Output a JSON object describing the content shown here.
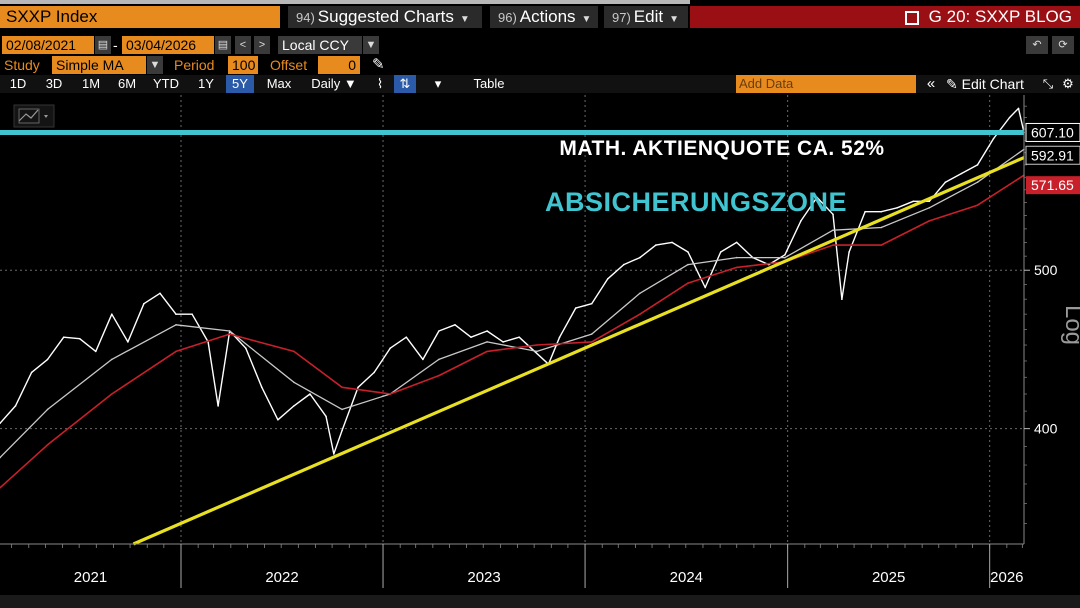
{
  "header": {
    "ticker": "SXXP Index",
    "menu": [
      {
        "num": "94)",
        "label": "Suggested Charts"
      },
      {
        "num": "96)",
        "label": "Actions"
      },
      {
        "num": "97)",
        "label": "Edit"
      }
    ],
    "blog_title": "G 20: SXXP BLOG"
  },
  "toolbar": {
    "start_date": "02/08/2021",
    "end_date": "03/04/2026",
    "currency": "Local CCY",
    "study_label": "Study",
    "study_value": "Simple MA",
    "period_label": "Period",
    "period_value": "100",
    "offset_label": "Offset",
    "offset_value": "0"
  },
  "periods": [
    "1D",
    "3D",
    "1M",
    "6M",
    "YTD",
    "1Y",
    "5Y",
    "Max"
  ],
  "selected_period": "5Y",
  "frequency": "Daily",
  "table_label": "Table",
  "add_data_placeholder": "Add Data",
  "edit_chart_label": "Edit Chart",
  "colors": {
    "price": "#ffffff",
    "ma_short": "#c8c8c8",
    "ma_long": "#c8202a",
    "trendline": "#e8e020",
    "level_line": "#3fc4d0",
    "annotation_text": "#3fc4d0"
  },
  "chart_data": {
    "type": "line",
    "xlabel": "",
    "ylabel": "",
    "y_scale": "log",
    "y_scale_label": "Log",
    "ylim": [
      340,
      640
    ],
    "x_range": [
      "2021-02-08",
      "2026-03-04"
    ],
    "x_tick_labels": [
      "2021",
      "2022",
      "2023",
      "2024",
      "2025",
      "2026"
    ],
    "y_ticks": [
      400,
      500
    ],
    "grid": true,
    "annotations": [
      {
        "text": "MATH. AKTIENQUOTE CA. 52%",
        "color": "#ffffff"
      },
      {
        "text": "ABSICHERUNGSZONE",
        "color": "#3fc4d0"
      }
    ],
    "last_values": [
      {
        "label": "607.10",
        "color": "#ffffff"
      },
      {
        "label": "592.91",
        "color": "#c8c8c8"
      },
      {
        "label": "571.65",
        "color": "#c8202a"
      }
    ],
    "hlines": [
      {
        "y": 607.1,
        "color": "#3fc4d0"
      }
    ],
    "trendline": {
      "color": "#e8e020",
      "points": [
        {
          "date": "2021-10-07",
          "value": 340
        },
        {
          "date": "2026-03-04",
          "value": 586
        }
      ]
    },
    "series": [
      {
        "role": "price",
        "color": "#ffffff",
        "points": [
          {
            "date": "2021-02-08",
            "value": 403
          },
          {
            "date": "2021-03-08",
            "value": 413
          },
          {
            "date": "2021-04-06",
            "value": 433
          },
          {
            "date": "2021-05-05",
            "value": 441
          },
          {
            "date": "2021-06-03",
            "value": 455
          },
          {
            "date": "2021-07-02",
            "value": 454
          },
          {
            "date": "2021-07-31",
            "value": 446
          },
          {
            "date": "2021-08-29",
            "value": 470
          },
          {
            "date": "2021-09-27",
            "value": 452
          },
          {
            "date": "2021-10-26",
            "value": 477
          },
          {
            "date": "2021-11-24",
            "value": 484
          },
          {
            "date": "2021-12-23",
            "value": 470
          },
          {
            "date": "2022-01-21",
            "value": 470
          },
          {
            "date": "2022-02-19",
            "value": 452
          },
          {
            "date": "2022-03-09",
            "value": 413
          },
          {
            "date": "2022-03-30",
            "value": 459
          },
          {
            "date": "2022-04-28",
            "value": 448
          },
          {
            "date": "2022-05-27",
            "value": 424
          },
          {
            "date": "2022-06-25",
            "value": 405
          },
          {
            "date": "2022-07-24",
            "value": 413
          },
          {
            "date": "2022-08-22",
            "value": 420
          },
          {
            "date": "2022-09-20",
            "value": 407
          },
          {
            "date": "2022-10-04",
            "value": 386
          },
          {
            "date": "2022-10-19",
            "value": 399
          },
          {
            "date": "2022-11-17",
            "value": 424
          },
          {
            "date": "2022-12-16",
            "value": 433
          },
          {
            "date": "2023-01-14",
            "value": 448
          },
          {
            "date": "2023-02-12",
            "value": 455
          },
          {
            "date": "2023-03-14",
            "value": 441
          },
          {
            "date": "2023-04-12",
            "value": 459
          },
          {
            "date": "2023-05-11",
            "value": 463
          },
          {
            "date": "2023-06-09",
            "value": 455
          },
          {
            "date": "2023-07-08",
            "value": 459
          },
          {
            "date": "2023-08-06",
            "value": 452
          },
          {
            "date": "2023-09-04",
            "value": 455
          },
          {
            "date": "2023-10-27",
            "value": 438
          },
          {
            "date": "2023-11-16",
            "value": 455
          },
          {
            "date": "2023-12-15",
            "value": 474
          },
          {
            "date": "2024-01-13",
            "value": 477
          },
          {
            "date": "2024-02-11",
            "value": 494
          },
          {
            "date": "2024-03-11",
            "value": 504
          },
          {
            "date": "2024-04-09",
            "value": 509
          },
          {
            "date": "2024-05-08",
            "value": 518
          },
          {
            "date": "2024-06-06",
            "value": 520
          },
          {
            "date": "2024-07-05",
            "value": 513
          },
          {
            "date": "2024-08-05",
            "value": 488
          },
          {
            "date": "2024-09-02",
            "value": 513
          },
          {
            "date": "2024-10-01",
            "value": 520
          },
          {
            "date": "2024-10-30",
            "value": 509
          },
          {
            "date": "2024-11-28",
            "value": 504
          },
          {
            "date": "2024-12-27",
            "value": 511
          },
          {
            "date": "2025-01-25",
            "value": 536
          },
          {
            "date": "2025-02-23",
            "value": 554
          },
          {
            "date": "2025-03-24",
            "value": 541
          },
          {
            "date": "2025-04-09",
            "value": 480
          },
          {
            "date": "2025-04-22",
            "value": 513
          },
          {
            "date": "2025-05-21",
            "value": 543
          },
          {
            "date": "2025-06-19",
            "value": 543
          },
          {
            "date": "2025-07-18",
            "value": 546
          },
          {
            "date": "2025-08-16",
            "value": 551
          },
          {
            "date": "2025-09-14",
            "value": 551
          },
          {
            "date": "2025-10-13",
            "value": 566
          },
          {
            "date": "2025-11-11",
            "value": 573
          },
          {
            "date": "2025-12-10",
            "value": 580
          },
          {
            "date": "2026-01-08",
            "value": 602
          },
          {
            "date": "2026-02-06",
            "value": 620
          },
          {
            "date": "2026-02-22",
            "value": 628
          },
          {
            "date": "2026-03-04",
            "value": 607.1
          }
        ]
      },
      {
        "role": "moving_average",
        "color": "#c8c8c8",
        "points": [
          {
            "date": "2021-02-08",
            "value": 384
          },
          {
            "date": "2021-05-05",
            "value": 411
          },
          {
            "date": "2021-08-29",
            "value": 441
          },
          {
            "date": "2021-12-23",
            "value": 463
          },
          {
            "date": "2022-03-30",
            "value": 459
          },
          {
            "date": "2022-07-24",
            "value": 427
          },
          {
            "date": "2022-10-19",
            "value": 411
          },
          {
            "date": "2023-01-14",
            "value": 420
          },
          {
            "date": "2023-04-12",
            "value": 441
          },
          {
            "date": "2023-07-08",
            "value": 452
          },
          {
            "date": "2023-10-06",
            "value": 446
          },
          {
            "date": "2024-01-13",
            "value": 457
          },
          {
            "date": "2024-04-09",
            "value": 484
          },
          {
            "date": "2024-07-05",
            "value": 504
          },
          {
            "date": "2024-10-01",
            "value": 509
          },
          {
            "date": "2024-12-27",
            "value": 509
          },
          {
            "date": "2025-03-24",
            "value": 529
          },
          {
            "date": "2025-06-19",
            "value": 531
          },
          {
            "date": "2025-09-14",
            "value": 546
          },
          {
            "date": "2025-12-10",
            "value": 566
          },
          {
            "date": "2026-03-04",
            "value": 592.91
          }
        ]
      },
      {
        "role": "moving_average",
        "color": "#c8202a",
        "points": [
          {
            "date": "2021-02-08",
            "value": 368
          },
          {
            "date": "2021-05-05",
            "value": 391
          },
          {
            "date": "2021-08-29",
            "value": 420
          },
          {
            "date": "2021-12-23",
            "value": 446
          },
          {
            "date": "2022-03-30",
            "value": 457
          },
          {
            "date": "2022-07-24",
            "value": 446
          },
          {
            "date": "2022-10-19",
            "value": 424
          },
          {
            "date": "2023-01-14",
            "value": 420
          },
          {
            "date": "2023-04-12",
            "value": 431
          },
          {
            "date": "2023-07-08",
            "value": 446
          },
          {
            "date": "2023-10-06",
            "value": 450
          },
          {
            "date": "2024-01-13",
            "value": 452
          },
          {
            "date": "2024-04-09",
            "value": 470
          },
          {
            "date": "2024-07-05",
            "value": 491
          },
          {
            "date": "2024-10-01",
            "value": 502
          },
          {
            "date": "2024-12-27",
            "value": 506
          },
          {
            "date": "2025-03-24",
            "value": 518
          },
          {
            "date": "2025-06-19",
            "value": 518
          },
          {
            "date": "2025-09-14",
            "value": 536
          },
          {
            "date": "2025-12-10",
            "value": 548
          },
          {
            "date": "2026-03-04",
            "value": 571.65
          }
        ]
      }
    ]
  }
}
